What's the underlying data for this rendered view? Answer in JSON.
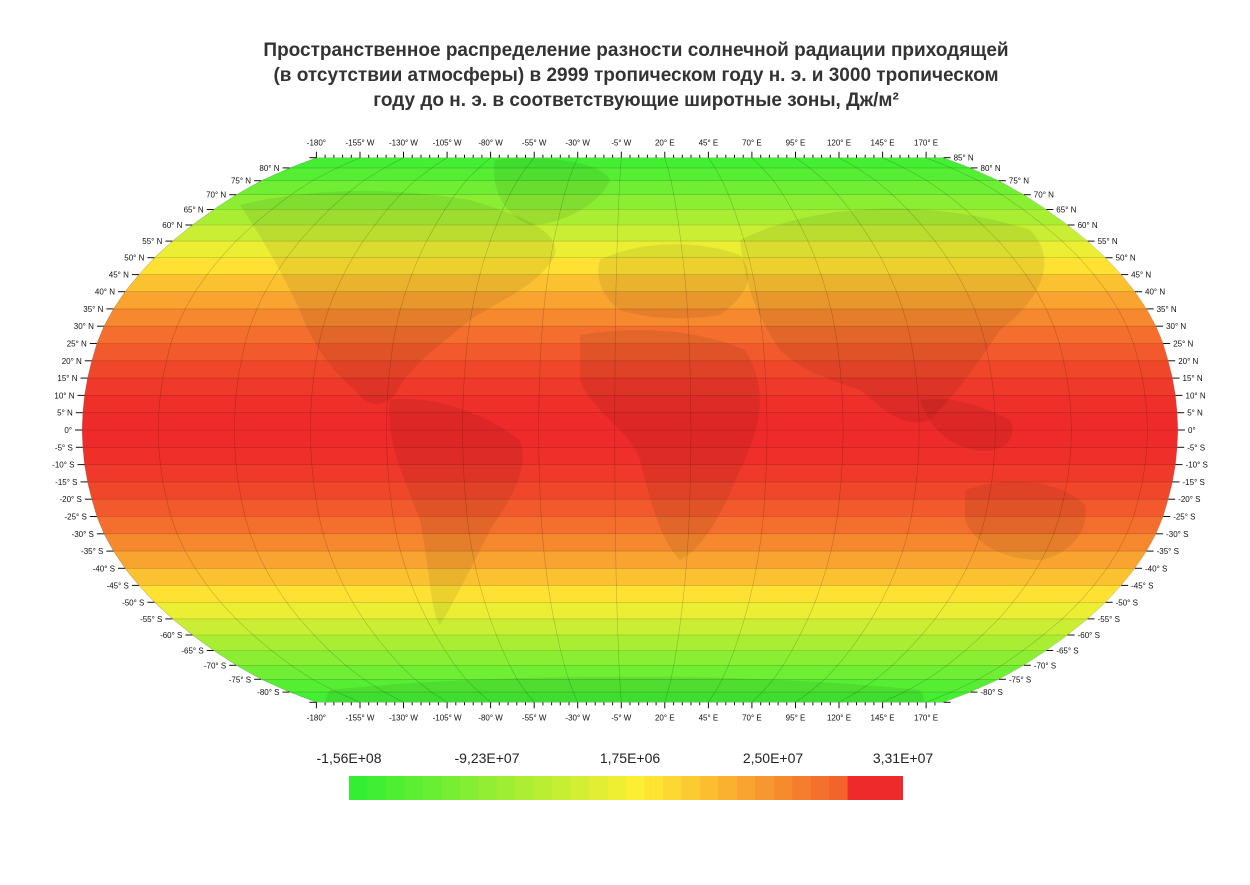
{
  "title_lines": [
    "Пространственное распределение разности солнечной радиации приходящей",
    "(в отсутствии атмосферы) в 2999 тропическом году н. э. и 3000 тропическом",
    "году до н. э. в соответствующие широтные зоны, Дж/м²"
  ],
  "map": {
    "projection": "Robinson",
    "longitude_labels": [
      "-180°",
      "-155° W",
      "-130° W",
      "-105° W",
      "-80° W",
      "-55° W",
      "-30° W",
      "-5° W",
      "20° E",
      "45° E",
      "70° E",
      "95° E",
      "120° E",
      "145° E",
      "170° E"
    ],
    "longitude_values": [
      -180,
      -155,
      -130,
      -105,
      -80,
      -55,
      -30,
      -5,
      20,
      45,
      70,
      95,
      120,
      145,
      170
    ],
    "latitude_labels_left": [
      "80° N",
      "75° N",
      "70° N",
      "65° N",
      "60° N",
      "55° N",
      "50° N",
      "45° N",
      "40° N",
      "35° N",
      "30° N",
      "25° N",
      "20° N",
      "15° N",
      "10° N",
      "5° N",
      "0°",
      "-5° S",
      "-10° S",
      "-15° S",
      "-20° S",
      "-25° S",
      "-30° S",
      "-35° S",
      "-40° S",
      "-45° S",
      "-50° S",
      "-55° S",
      "-60° S",
      "-65° S",
      "-70° S",
      "-75° S",
      "-80° S"
    ],
    "latitude_labels_right": [
      "85° N",
      "80° N",
      "75° N",
      "70° N",
      "65° N",
      "60° N",
      "55° N",
      "50° N",
      "45° N",
      "40° N",
      "35° N",
      "30° N",
      "25° N",
      "20° N",
      "15° N",
      "10° N",
      "5° N",
      "0°",
      "-5° S",
      "-10° S",
      "-15° S",
      "-20° S",
      "-25° S",
      "-30° S",
      "-35° S",
      "-40° S",
      "-45° S",
      "-50° S",
      "-55° S",
      "-60° S",
      "-65° S",
      "-70° S",
      "-75° S",
      "-80° S"
    ],
    "band_step_deg": 5,
    "colors": {
      "min": "#33ee33",
      "mid": "#ffee33",
      "max": "#ee2a2a"
    }
  },
  "legend": {
    "labels": [
      "-1,56E+08",
      "-9,23E+07",
      "1,75E+06",
      "2,50E+07",
      "3,31E+07"
    ],
    "colors": [
      "#33ee33",
      "#66ee33",
      "#99ee33",
      "#ccee33",
      "#eeee33",
      "#ffee33",
      "#ffd633",
      "#ffbb33",
      "#ff9f33",
      "#ff8533",
      "#ff6a33",
      "#f54f30",
      "#ee2a2a"
    ]
  }
}
